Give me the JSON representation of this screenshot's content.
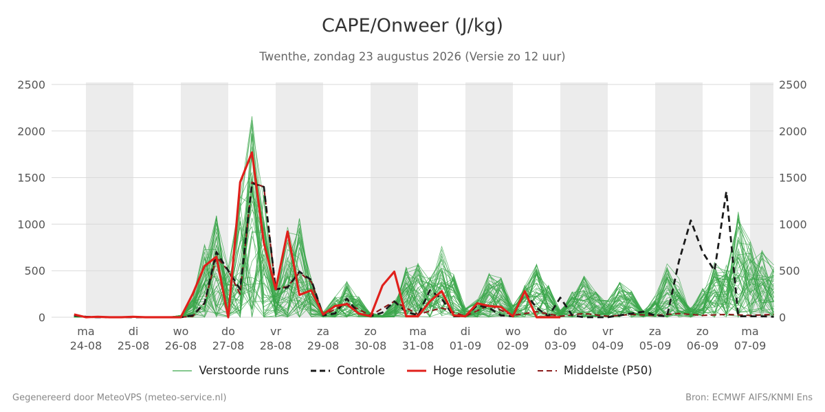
{
  "title": "CAPE/Onweer (J/kg)",
  "subtitle": "Twenthe, zondag 23 augustus 2026 (Versie zo 12 uur)",
  "footer": {
    "left": "Gegenereerd door MeteoVPS (meteo-service.nl)",
    "right": "Bron: ECMWF AIFS/KNMI Ens"
  },
  "colors": {
    "perturbed": "#3aa64a",
    "control": "#1a1a1a",
    "high_res": "#e0201b",
    "median": "#8b1a1a",
    "weekend_band": "#ececec"
  },
  "chart_data": {
    "type": "line",
    "ylim": [
      0,
      2500
    ],
    "yticks": [
      0,
      500,
      1000,
      1500,
      2000,
      2500
    ],
    "grid": true,
    "legend_position": "bottom",
    "x_range_days": [
      -0.25,
      14.5
    ],
    "x_tick_labels": [
      {
        "day": "ma",
        "date": "24-08"
      },
      {
        "day": "di",
        "date": "25-08"
      },
      {
        "day": "wo",
        "date": "26-08"
      },
      {
        "day": "do",
        "date": "27-08"
      },
      {
        "day": "vr",
        "date": "28-08"
      },
      {
        "day": "za",
        "date": "29-08"
      },
      {
        "day": "zo",
        "date": "30-08"
      },
      {
        "day": "ma",
        "date": "31-08"
      },
      {
        "day": "di",
        "date": "01-09"
      },
      {
        "day": "wo",
        "date": "02-09"
      },
      {
        "day": "do",
        "date": "03-09"
      },
      {
        "day": "vr",
        "date": "04-09"
      },
      {
        "day": "za",
        "date": "05-09"
      },
      {
        "day": "zo",
        "date": "06-09"
      },
      {
        "day": "ma",
        "date": "07-09"
      }
    ],
    "shaded_bands": [
      [
        0,
        1
      ],
      [
        2,
        3
      ],
      [
        4,
        5
      ],
      [
        6,
        7
      ],
      [
        8,
        9
      ],
      [
        10,
        11
      ],
      [
        12,
        13
      ],
      [
        14,
        15
      ]
    ],
    "legend": [
      {
        "key": "perturbed",
        "label": "Verstoorde runs"
      },
      {
        "key": "control",
        "label": "Controle"
      },
      {
        "key": "high_res",
        "label": "Hoge resolutie"
      },
      {
        "key": "median",
        "label": "Middelste (P50)"
      }
    ],
    "series": [
      {
        "key": "high_res",
        "x": [
          -0.25,
          0,
          0.25,
          0.5,
          0.75,
          1,
          1.25,
          1.5,
          1.75,
          2,
          2.25,
          2.5,
          2.75,
          3,
          3.25,
          3.5,
          3.75,
          4,
          4.25,
          4.5,
          4.75,
          5,
          5.25,
          5.5,
          5.75,
          6,
          6.25,
          6.5,
          6.75,
          7,
          7.25,
          7.5,
          7.75,
          8,
          8.25,
          8.5,
          8.75,
          9,
          9.25,
          9.5,
          9.75,
          10
        ],
        "y": [
          30,
          0,
          5,
          0,
          0,
          5,
          0,
          0,
          0,
          0,
          250,
          550,
          650,
          0,
          1450,
          1770,
          800,
          300,
          920,
          240,
          290,
          30,
          120,
          140,
          40,
          10,
          340,
          490,
          10,
          10,
          170,
          280,
          20,
          10,
          150,
          120,
          110,
          10,
          280,
          0,
          0,
          0
        ]
      },
      {
        "key": "control",
        "x": [
          -0.25,
          0,
          0.25,
          0.5,
          0.75,
          1,
          1.25,
          1.5,
          1.75,
          2,
          2.25,
          2.5,
          2.75,
          3,
          3.25,
          3.5,
          3.75,
          4,
          4.25,
          4.5,
          4.75,
          5,
          5.25,
          5.5,
          5.75,
          6,
          6.25,
          6.5,
          6.75,
          7,
          7.25,
          7.5,
          7.75,
          8,
          8.25,
          8.5,
          8.75,
          9,
          9.25,
          9.5,
          9.75,
          10,
          10.25,
          10.5,
          10.75,
          11,
          11.25,
          11.5,
          11.75,
          12,
          12.25,
          12.5,
          12.75,
          13,
          13.25,
          13.5,
          13.75,
          14,
          14.25,
          14.5
        ],
        "y": [
          20,
          5,
          0,
          0,
          0,
          0,
          0,
          0,
          0,
          0,
          20,
          150,
          700,
          500,
          300,
          1440,
          1400,
          300,
          320,
          490,
          400,
          20,
          40,
          200,
          40,
          10,
          50,
          170,
          60,
          20,
          290,
          200,
          10,
          10,
          130,
          100,
          20,
          10,
          270,
          100,
          10,
          210,
          20,
          0,
          0,
          0,
          20,
          40,
          60,
          20,
          10,
          600,
          1040,
          700,
          500,
          1350,
          10,
          10,
          10,
          5
        ]
      },
      {
        "key": "median",
        "x": [
          -0.25,
          0,
          0.5,
          1,
          1.5,
          2,
          2.25,
          2.5,
          2.75,
          3,
          3.25,
          3.5,
          3.75,
          4,
          4.25,
          4.5,
          4.75,
          5,
          5.5,
          6,
          6.5,
          7,
          7.5,
          8,
          8.5,
          9,
          9.5,
          10,
          10.5,
          11,
          11.5,
          12,
          12.5,
          13,
          13.5,
          14,
          14.5
        ],
        "y": [
          20,
          0,
          0,
          0,
          0,
          0,
          10,
          150,
          650,
          500,
          250,
          1450,
          1400,
          300,
          330,
          480,
          380,
          20,
          150,
          20,
          170,
          30,
          100,
          10,
          130,
          20,
          60,
          10,
          40,
          10,
          30,
          20,
          40,
          20,
          30,
          20,
          30
        ]
      }
    ]
  }
}
